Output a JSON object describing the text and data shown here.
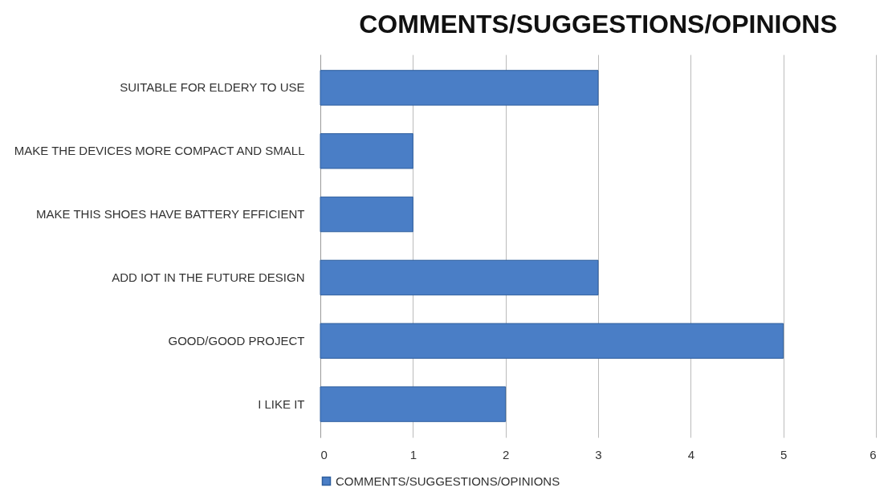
{
  "chart_data": {
    "type": "bar",
    "orientation": "horizontal",
    "title": "COMMENTS/SUGGESTIONS/OPINIONS",
    "categories": [
      "SUITABLE FOR ELDERY TO USE",
      "MAKE THE DEVICES MORE COMPACT AND SMALL",
      "MAKE THIS SHOES HAVE BATTERY EFFICIENT",
      "ADD IOT IN THE FUTURE DESIGN",
      "GOOD/GOOD PROJECT",
      "I LIKE IT"
    ],
    "series": [
      {
        "name": "COMMENTS/SUGGESTIONS/OPINIONS",
        "color": "#4a7ec6",
        "values": [
          3,
          1,
          1,
          3,
          5,
          2
        ]
      }
    ],
    "xlim": [
      0,
      6
    ],
    "xticks": [
      0,
      1,
      2,
      3,
      4,
      5,
      6
    ],
    "grid": "x",
    "legend": "bottom"
  }
}
